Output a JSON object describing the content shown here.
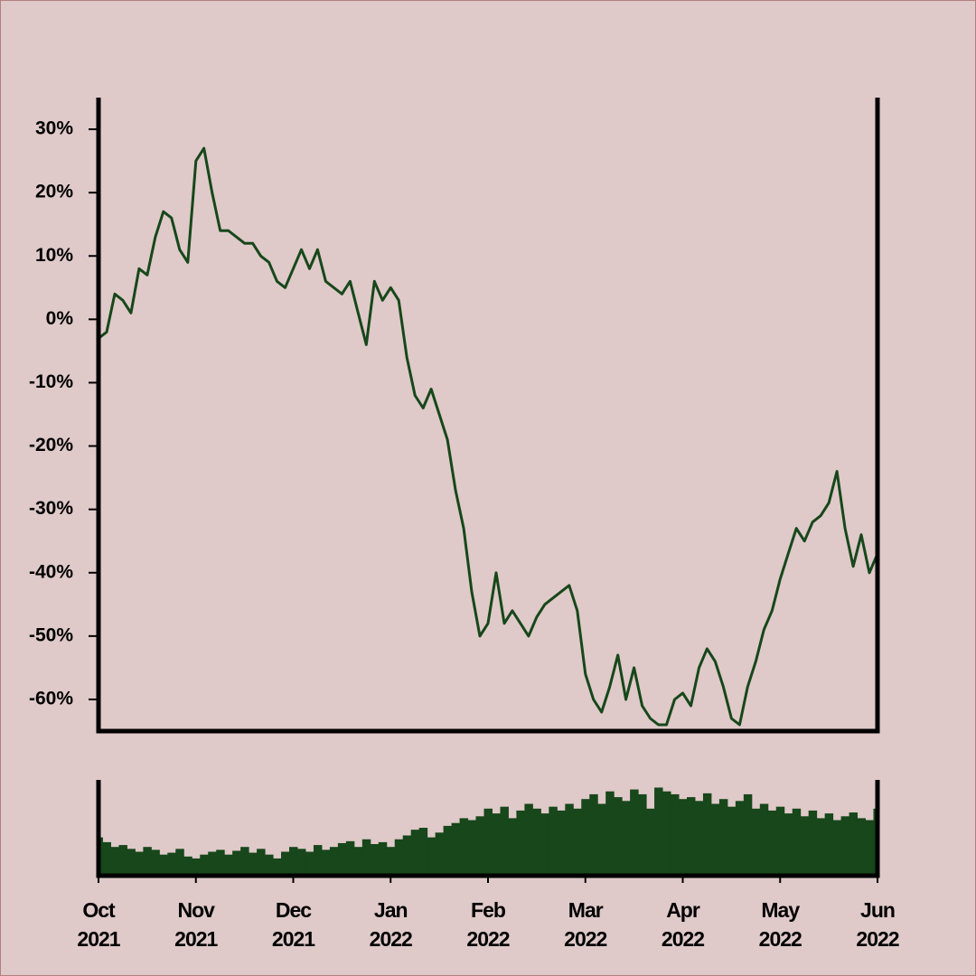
{
  "chart_data": [
    {
      "type": "line",
      "color": "#17471a",
      "categories": [
        "Oct\n2021",
        null,
        null,
        null,
        null,
        null,
        null,
        null,
        null,
        null,
        null,
        null,
        "Nov\n2021",
        null,
        null,
        null,
        null,
        null,
        null,
        null,
        null,
        null,
        null,
        null,
        "Dec\n2021",
        null,
        null,
        null,
        null,
        null,
        null,
        null,
        null,
        null,
        null,
        null,
        "Jan\n2022",
        null,
        null,
        null,
        null,
        null,
        null,
        null,
        null,
        null,
        null,
        null,
        "Feb\n2022",
        null,
        null,
        null,
        null,
        null,
        null,
        null,
        null,
        null,
        null,
        null,
        "Mar\n2022",
        null,
        null,
        null,
        null,
        null,
        null,
        null,
        null,
        null,
        null,
        null,
        "Apr\n2022",
        null,
        null,
        null,
        null,
        null,
        null,
        null,
        null,
        null,
        null,
        null,
        "May\n2022",
        null,
        null,
        null,
        null,
        null,
        null,
        null,
        null,
        null,
        null,
        null,
        "Jun\n2022"
      ],
      "values": [
        -3,
        -2,
        4,
        3,
        1,
        8,
        7,
        13,
        17,
        16,
        11,
        9,
        25,
        27,
        20,
        14,
        14,
        13,
        12,
        12,
        10,
        9,
        6,
        5,
        8,
        11,
        8,
        11,
        6,
        5,
        4,
        6,
        1,
        -4,
        6,
        3,
        5,
        3,
        -6,
        -12,
        -14,
        -11,
        -15,
        -19,
        -27,
        -33,
        -43,
        -50,
        -48,
        -40,
        -48,
        -46,
        -48,
        -50,
        -47,
        -45,
        -44,
        -43,
        -42,
        -46,
        -56,
        -60,
        -62,
        -58,
        -53,
        -60,
        -55,
        -61,
        -63,
        -64,
        -64,
        -60,
        -59,
        -61,
        -55,
        -52,
        -54,
        -58,
        -63,
        -64,
        -58,
        -54,
        -49,
        -46,
        -41,
        -37,
        -33,
        -35,
        -32,
        -31,
        -29,
        -24,
        -33,
        -39,
        -34,
        -40,
        -37
      ],
      "ylim": [
        -65,
        35
      ],
      "yticks": [
        {
          "value": -60,
          "label": "-60%"
        },
        {
          "value": -50,
          "label": "-50%"
        },
        {
          "value": -40,
          "label": "-40%"
        },
        {
          "value": -30,
          "label": "-30%"
        },
        {
          "value": -20,
          "label": "-20%"
        },
        {
          "value": -10,
          "label": "-10%"
        },
        {
          "value": 0,
          "label": "0%"
        },
        {
          "value": 10,
          "label": "10%"
        },
        {
          "value": 20,
          "label": "20%"
        },
        {
          "value": 30,
          "label": "30%"
        }
      ]
    },
    {
      "type": "bar",
      "color": "#17471a",
      "values": [
        40,
        35,
        30,
        32,
        28,
        25,
        30,
        27,
        22,
        24,
        28,
        20,
        18,
        22,
        25,
        27,
        22,
        26,
        30,
        24,
        28,
        22,
        18,
        25,
        30,
        28,
        25,
        32,
        27,
        30,
        34,
        36,
        30,
        38,
        33,
        35,
        30,
        38,
        42,
        48,
        50,
        40,
        45,
        52,
        55,
        60,
        58,
        62,
        70,
        65,
        72,
        60,
        68,
        75,
        70,
        65,
        72,
        68,
        75,
        70,
        80,
        85,
        75,
        88,
        82,
        78,
        90,
        85,
        70,
        92,
        88,
        85,
        80,
        82,
        78,
        86,
        75,
        80,
        72,
        78,
        85,
        70,
        75,
        68,
        72,
        65,
        70,
        62,
        68,
        60,
        65,
        58,
        62,
        66,
        60,
        58,
        70
      ],
      "ylim": [
        0,
        100
      ]
    }
  ]
}
